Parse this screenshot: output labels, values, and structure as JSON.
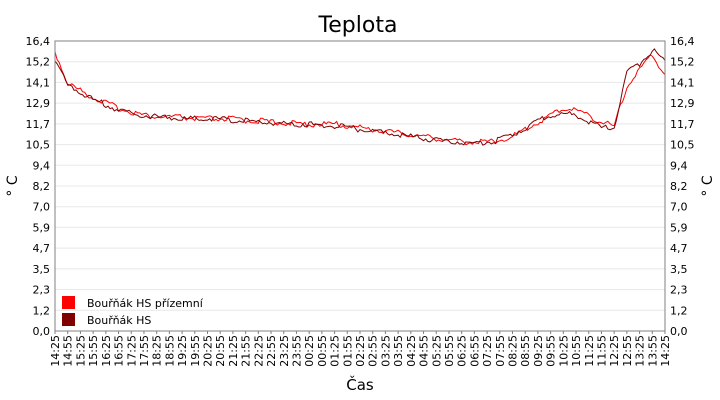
{
  "chart_data": {
    "type": "line",
    "title": "Teplota",
    "xlabel": "Čas",
    "ylabel": "° C",
    "ylim": [
      0,
      16.4
    ],
    "grid": true,
    "legend_position": "bottom-left",
    "y_ticks": [
      "0,0",
      "1,2",
      "2,3",
      "3,5",
      "4,7",
      "5,9",
      "7,0",
      "8,2",
      "9,4",
      "10,5",
      "11,7",
      "12,9",
      "14,1",
      "15,2",
      "16,4"
    ],
    "x_ticks": [
      "14:25",
      "14:55",
      "15:25",
      "15:55",
      "16:25",
      "16:55",
      "17:25",
      "17:55",
      "18:25",
      "18:55",
      "19:25",
      "19:55",
      "20:25",
      "20:55",
      "21:25",
      "21:55",
      "22:25",
      "22:55",
      "23:25",
      "23:55",
      "00:25",
      "00:55",
      "01:25",
      "01:55",
      "02:25",
      "02:55",
      "03:25",
      "03:55",
      "04:25",
      "04:55",
      "05:25",
      "05:55",
      "06:25",
      "06:55",
      "07:25",
      "07:55",
      "08:25",
      "08:55",
      "09:25",
      "09:55",
      "10:25",
      "10:55",
      "11:25",
      "11:55",
      "12:25",
      "12:55",
      "13:25",
      "13:55",
      "14:25"
    ],
    "series": [
      {
        "name": "Bouřňák HS přízemní",
        "color": "#ff0000",
        "values": [
          15.8,
          14.0,
          13.6,
          13.2,
          12.9,
          12.6,
          12.4,
          12.2,
          12.1,
          12.1,
          12.1,
          12.0,
          12.0,
          12.0,
          12.0,
          11.9,
          11.9,
          11.8,
          11.8,
          11.7,
          11.7,
          11.7,
          11.7,
          11.6,
          11.5,
          11.4,
          11.3,
          11.2,
          11.1,
          11.0,
          10.9,
          10.8,
          10.7,
          10.7,
          10.7,
          10.8,
          11.0,
          11.4,
          11.8,
          12.2,
          12.6,
          12.5,
          12.2,
          11.8,
          11.6,
          13.8,
          14.8,
          15.6,
          14.5
        ]
      },
      {
        "name": "Bouřňák HS",
        "color": "#800000",
        "values": [
          15.3,
          13.9,
          13.5,
          13.1,
          12.8,
          12.5,
          12.3,
          12.2,
          12.1,
          12.1,
          12.0,
          12.0,
          12.0,
          12.0,
          11.9,
          11.9,
          11.8,
          11.8,
          11.7,
          11.7,
          11.7,
          11.6,
          11.6,
          11.5,
          11.4,
          11.3,
          11.2,
          11.1,
          11.0,
          10.9,
          10.8,
          10.7,
          10.7,
          10.6,
          10.7,
          10.8,
          11.1,
          11.5,
          11.9,
          12.2,
          12.3,
          12.2,
          11.8,
          11.5,
          11.5,
          14.6,
          15.1,
          15.9,
          15.3
        ]
      }
    ]
  }
}
